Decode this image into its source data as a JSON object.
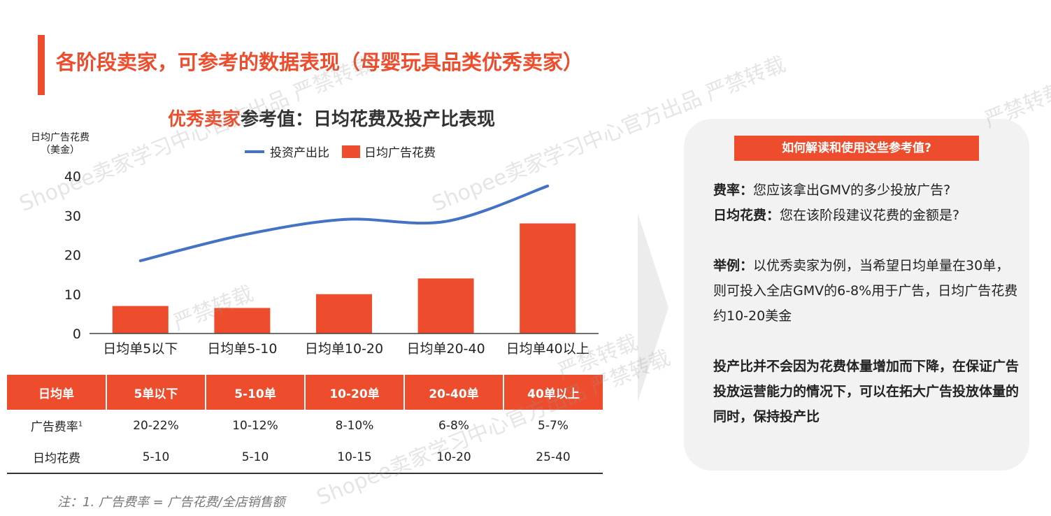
{
  "page": {
    "title": "各阶段卖家，可参考的数据表现（母婴玩具品类优秀卖家）"
  },
  "chart_data": {
    "type": "bar",
    "title_highlight": "优秀卖家",
    "title_rest": "参考值：日均花费及投产比表现",
    "ylabel_line1": "日均广告花费",
    "ylabel_line2": "（美金）",
    "categories": [
      "日均单5以下",
      "日均单5-10",
      "日均单10-20",
      "日均单20-40",
      "日均单40以上"
    ],
    "ylim": [
      0,
      40
    ],
    "yticks": [
      0,
      10,
      20,
      30,
      40
    ],
    "series": [
      {
        "name": "投资产出比",
        "type": "line",
        "color": "#4472c4",
        "values": [
          18.5,
          25,
          29,
          28.5,
          37.5
        ]
      },
      {
        "name": "日均广告花费",
        "type": "bar",
        "color": "#ee4d2d",
        "values": [
          7,
          6.5,
          10,
          14,
          28
        ]
      }
    ],
    "legend_position": "top"
  },
  "table": {
    "headers": [
      "日均单",
      "5单以下",
      "5-10单",
      "10-20单",
      "20-40单",
      "40单以上"
    ],
    "rows": [
      {
        "label": "广告费率",
        "sup": "1",
        "cells": [
          "20-22%",
          "10-12%",
          "8-10%",
          "6-8%",
          "5-7%"
        ]
      },
      {
        "label": "日均花费",
        "sup": "",
        "cells": [
          "5-10",
          "5-10",
          "10-15",
          "10-20",
          "25-40"
        ]
      }
    ]
  },
  "note": "注：1. 广告费率 = 广告花费/全店销售额",
  "panel": {
    "heading": "如何解读和使用这些参考值?",
    "item1_label": "费率：",
    "item1_text": "您应该拿出GMV的多少投放广告?",
    "item2_label": "日均花费：",
    "item2_text": "您在该阶段建议花费的金额是?",
    "example_label": "举例：",
    "example_text": "以优秀卖家为例，当希望日均单量在30单，则可投入全店GMV的6-8%用于广告，日均广告花费约10-20美金",
    "conclusion": "投产比并不会因为花费体量增加而下降，在保证广告投放运营能力的情况下，可以在拓大广告投放体量的同时，保持投产比"
  },
  "watermarks": [
    "Shopee卖家学习中心官方出品 严禁转载",
    "Shopee卖家学习中心官方出品 严禁转载",
    "严禁转载",
    "严禁转载",
    "Shopee卖家学习中心官方出品 严禁转载",
    "严禁转载"
  ],
  "colors": {
    "accent": "#ee4d2d",
    "line": "#4472c4",
    "panel": "#f2f2f2"
  }
}
